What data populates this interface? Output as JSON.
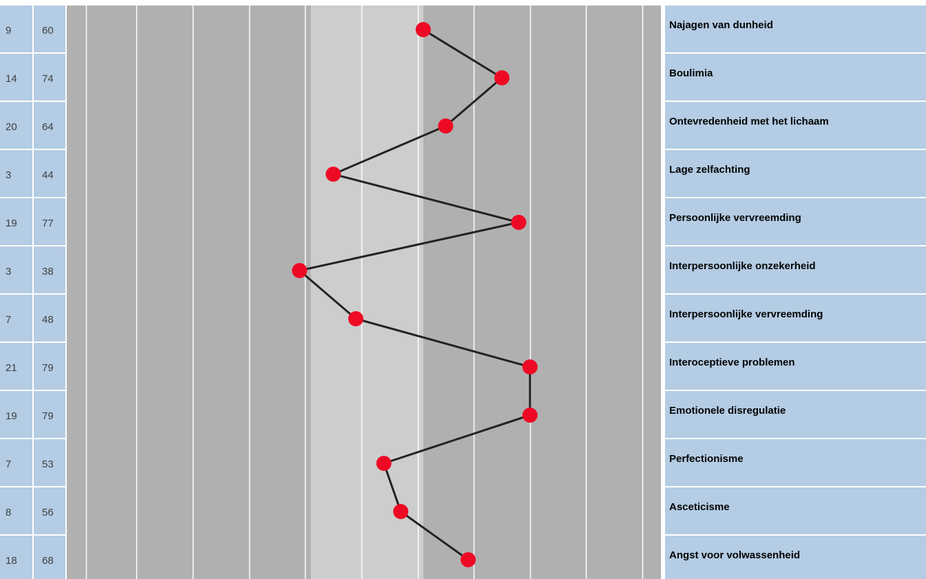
{
  "chart_data": {
    "type": "line",
    "orientation": "horizontal-profile",
    "xlim": [
      0,
      99
    ],
    "grid": true,
    "colors": {
      "left_column_bg": "#b4cce4",
      "right_column_bg": "#b4cce4",
      "band_dark": "#b0b0b0",
      "band_light": "#cdcdcd",
      "grid_line": "#ffffff",
      "line": "#222222",
      "marker": "#ee0a24"
    },
    "bands": [
      {
        "from": 0,
        "to": 40,
        "shade": "dark"
      },
      {
        "from": 40,
        "to": 60,
        "shade": "light"
      },
      {
        "from": 60,
        "to": 99,
        "shade": "dark"
      }
    ],
    "rows": [
      {
        "raw": "9",
        "score": 60,
        "score_label": "60",
        "label": "Najagen van dunheid"
      },
      {
        "raw": "14",
        "score": 74,
        "score_label": "74",
        "label": "Boulimia"
      },
      {
        "raw": "20",
        "score": 64,
        "score_label": "64",
        "label": "Ontevredenheid met het lichaam"
      },
      {
        "raw": "3",
        "score": 44,
        "score_label": "44",
        "label": "Lage zelfachting"
      },
      {
        "raw": "19",
        "score": 77,
        "score_label": "77",
        "label": "Persoonlijke vervreemding"
      },
      {
        "raw": "3",
        "score": 38,
        "score_label": "38",
        "label": "Interpersoonlijke onzekerheid"
      },
      {
        "raw": "7",
        "score": 48,
        "score_label": "48",
        "label": "Interpersoonlijke vervreemding"
      },
      {
        "raw": "21",
        "score": 79,
        "score_label": "79",
        "label": "Interoceptieve problemen"
      },
      {
        "raw": "19",
        "score": 79,
        "score_label": "79",
        "label": "Emotionele disregulatie"
      },
      {
        "raw": "7",
        "score": 53,
        "score_label": "53",
        "label": "Perfectionisme"
      },
      {
        "raw": "8",
        "score": 56,
        "score_label": "56",
        "label": "Asceticisme"
      },
      {
        "raw": "18",
        "score": 68,
        "score_label": "68",
        "label": "Angst voor volwassenheid"
      }
    ]
  }
}
